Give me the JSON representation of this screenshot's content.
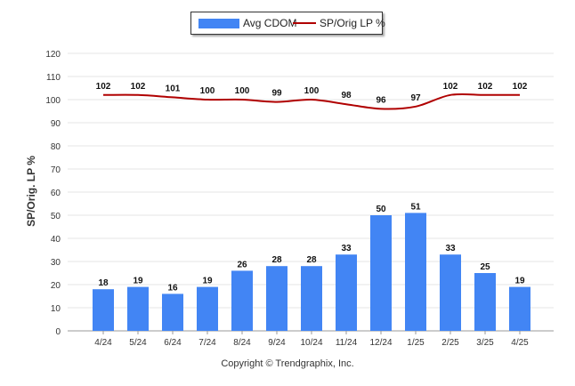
{
  "chart_data": {
    "type": "bar",
    "categories": [
      "4/24",
      "5/24",
      "6/24",
      "7/24",
      "8/24",
      "9/24",
      "10/24",
      "11/24",
      "12/24",
      "1/25",
      "2/25",
      "3/25",
      "4/25"
    ],
    "series": [
      {
        "name": "Avg CDOM",
        "type": "bar",
        "color": "#4285f4",
        "values": [
          18,
          19,
          16,
          19,
          26,
          28,
          28,
          33,
          50,
          51,
          33,
          25,
          19
        ]
      },
      {
        "name": "SP/Orig LP %",
        "type": "line",
        "color": "#b00000",
        "values": [
          102,
          102,
          101,
          100,
          100,
          99,
          100,
          98,
          96,
          97,
          102,
          102,
          102
        ]
      }
    ],
    "ylabel": "SP/Orig. LP %",
    "ylim": [
      0,
      120
    ],
    "yticks": [
      0,
      10,
      20,
      30,
      40,
      50,
      60,
      70,
      80,
      90,
      100,
      110,
      120
    ],
    "grid": true,
    "legend": "top-center"
  },
  "footer": {
    "copyright": "Copyright © Trendgraphix, Inc."
  }
}
